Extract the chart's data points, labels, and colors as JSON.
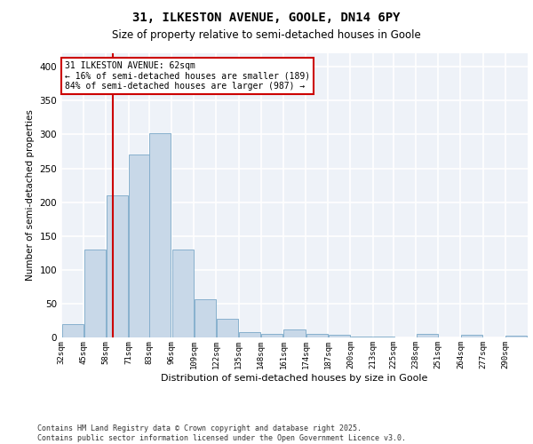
{
  "title_line1": "31, ILKESTON AVENUE, GOOLE, DN14 6PY",
  "title_line2": "Size of property relative to semi-detached houses in Goole",
  "xlabel": "Distribution of semi-detached houses by size in Goole",
  "ylabel": "Number of semi-detached properties",
  "footer_line1": "Contains HM Land Registry data © Crown copyright and database right 2025.",
  "footer_line2": "Contains public sector information licensed under the Open Government Licence v3.0.",
  "annotation_title": "31 ILKESTON AVENUE: 62sqm",
  "annotation_line1": "← 16% of semi-detached houses are smaller (189)",
  "annotation_line2": "84% of semi-detached houses are larger (987) →",
  "property_size": 62,
  "bar_color": "#c8d8e8",
  "bar_edge_color": "#7aa8c8",
  "vline_color": "#cc0000",
  "annotation_box_color": "#cc0000",
  "background_color": "#eef2f8",
  "grid_color": "#ffffff",
  "categories": [
    "32sqm",
    "45sqm",
    "58sqm",
    "71sqm",
    "83sqm",
    "96sqm",
    "109sqm",
    "122sqm",
    "135sqm",
    "148sqm",
    "161sqm",
    "174sqm",
    "187sqm",
    "200sqm",
    "213sqm",
    "225sqm",
    "238sqm",
    "251sqm",
    "264sqm",
    "277sqm",
    "290sqm"
  ],
  "bin_edges": [
    32,
    45,
    58,
    71,
    83,
    96,
    109,
    122,
    135,
    148,
    161,
    174,
    187,
    200,
    213,
    225,
    238,
    251,
    264,
    277,
    290
  ],
  "values": [
    20,
    130,
    210,
    270,
    302,
    130,
    57,
    28,
    8,
    5,
    12,
    5,
    4,
    1,
    1,
    0,
    5,
    0,
    4,
    0,
    2
  ],
  "ylim": [
    0,
    420
  ],
  "yticks": [
    0,
    50,
    100,
    150,
    200,
    250,
    300,
    350,
    400
  ]
}
